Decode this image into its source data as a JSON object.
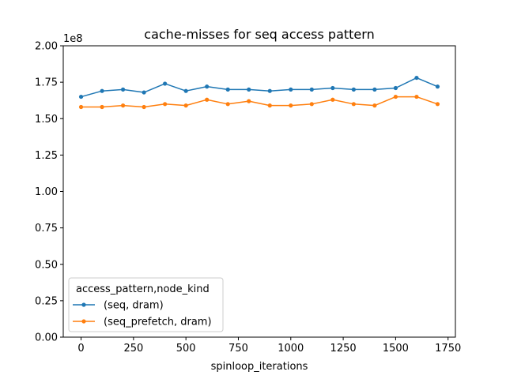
{
  "chart_data": {
    "type": "line",
    "title": "cache-misses for seq access pattern",
    "xlabel": "spinloop_iterations",
    "ylabel": "",
    "y_offset_label": "1e8",
    "x": [
      0,
      100,
      200,
      300,
      400,
      500,
      600,
      700,
      800,
      900,
      1000,
      1100,
      1200,
      1300,
      1400,
      1500,
      1600,
      1700
    ],
    "xlim": [
      -85,
      1785
    ],
    "ylim": [
      0,
      2.0
    ],
    "x_ticks": [
      0,
      250,
      500,
      750,
      1000,
      1250,
      1500,
      1750
    ],
    "x_tick_labels": [
      "0",
      "250",
      "500",
      "750",
      "1000",
      "1250",
      "1500",
      "1750"
    ],
    "y_ticks": [
      0,
      0.25,
      0.5,
      0.75,
      1.0,
      1.25,
      1.5,
      1.75,
      2.0
    ],
    "y_tick_labels": [
      "0.00",
      "0.25",
      "0.50",
      "0.75",
      "1.00",
      "1.25",
      "1.50",
      "1.75",
      "2.00"
    ],
    "grid": false,
    "legend": {
      "title": "access_pattern,node_kind",
      "placement": "lower-left"
    },
    "series": [
      {
        "name": "(seq, dram)",
        "color": "#1f77b4",
        "values": [
          1.65,
          1.69,
          1.7,
          1.68,
          1.74,
          1.69,
          1.72,
          1.7,
          1.7,
          1.69,
          1.7,
          1.7,
          1.71,
          1.7,
          1.7,
          1.71,
          1.78,
          1.72
        ]
      },
      {
        "name": "(seq_prefetch, dram)",
        "color": "#ff7f0e",
        "values": [
          1.58,
          1.58,
          1.59,
          1.58,
          1.6,
          1.59,
          1.63,
          1.6,
          1.62,
          1.59,
          1.59,
          1.6,
          1.63,
          1.6,
          1.59,
          1.65,
          1.65,
          1.6
        ]
      }
    ]
  }
}
